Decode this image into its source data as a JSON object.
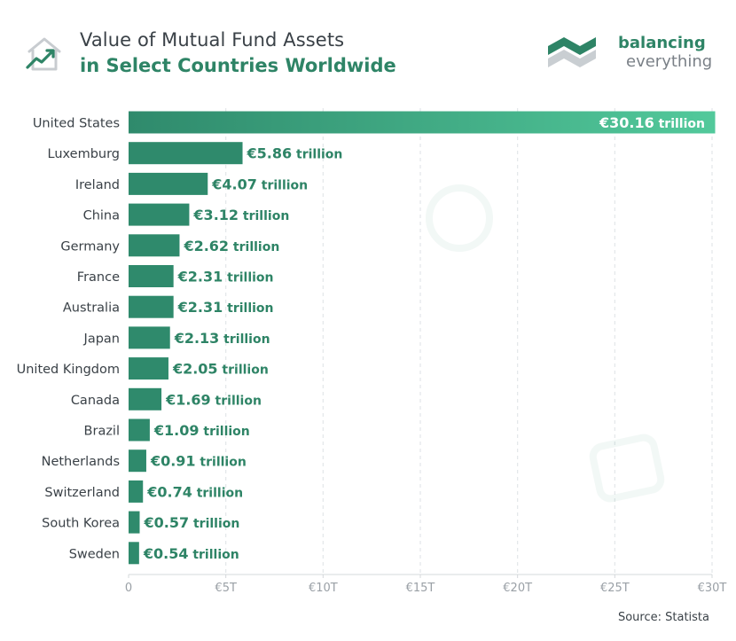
{
  "header": {
    "title_line1": "Value of Mutual Fund Assets",
    "title_line2": "in Select Countries Worldwide",
    "icon": "house-chart-icon"
  },
  "brand": {
    "name_line1": "balancing",
    "name_line2": "everything",
    "logo": "balancing-everything-logo"
  },
  "footer": {
    "source": "Source: Statista"
  },
  "colors": {
    "bar": "#2f8a6c",
    "bar_gradient_end": "#52c99b",
    "label": "#2e8466",
    "text": "#3a4147",
    "grid": "#e3e6e8",
    "tick": "#9aa0a6"
  },
  "chart_data": {
    "type": "bar",
    "orientation": "horizontal",
    "title": "Value of Mutual Fund Assets in Select Countries Worldwide",
    "categories": [
      "United States",
      "Luxemburg",
      "Ireland",
      "China",
      "Germany",
      "France",
      "Australia",
      "Japan",
      "United Kingdom",
      "Canada",
      "Brazil",
      "Netherlands",
      "Switzerland",
      "South Korea",
      "Sweden"
    ],
    "values": [
      30.16,
      5.86,
      4.07,
      3.12,
      2.62,
      2.31,
      2.31,
      2.13,
      2.05,
      1.69,
      1.09,
      0.91,
      0.74,
      0.57,
      0.54
    ],
    "value_labels": [
      "€30.16 trillion",
      "€5.86 trillion",
      "€4.07 trillion",
      "€3.12 trillion",
      "€2.62 trillion",
      "€2.31 trillion",
      "€2.31 trillion",
      "€2.13 trillion",
      "€2.05 trillion",
      "€1.69 trillion",
      "€1.09 trillion",
      "€0.91 trillion",
      "€0.74 trillion",
      "€0.57 trillion",
      "€0.54 trillion"
    ],
    "xticks": [
      0,
      5,
      10,
      15,
      20,
      25,
      30
    ],
    "xtick_labels": [
      "0",
      "€5T",
      "€10T",
      "€15T",
      "€20T",
      "€25T",
      "€30T"
    ],
    "xlim": [
      0,
      30
    ],
    "unit": "trillion EUR",
    "xlabel": "",
    "ylabel": "",
    "grid": true
  }
}
